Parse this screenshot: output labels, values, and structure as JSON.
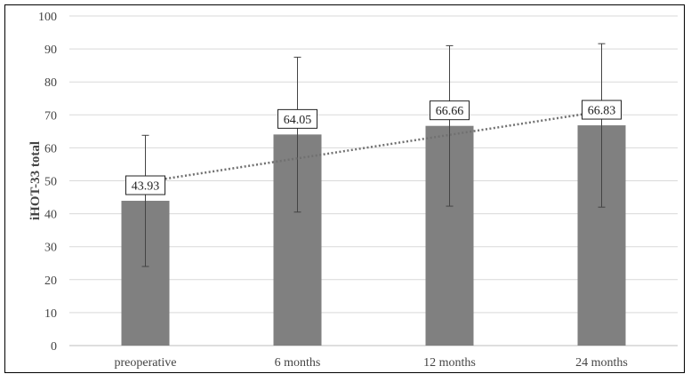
{
  "chart_data": {
    "type": "bar",
    "categories": [
      "preoperative",
      "6 months",
      "12 months",
      "24 months"
    ],
    "values": [
      43.93,
      64.05,
      66.66,
      66.83
    ],
    "error_bars": {
      "lower": [
        24,
        40.5,
        42.3,
        42
      ],
      "upper": [
        63.8,
        87.5,
        91,
        91.6
      ]
    },
    "data_labels": [
      "43.93",
      "64.05",
      "66.66",
      "66.83"
    ],
    "trendline": {
      "type": "linear",
      "style": "dotted"
    },
    "ylabel": "iHOT-33 total",
    "xlabel": "",
    "title": "",
    "ylim": [
      0,
      100
    ],
    "yticks": [
      0,
      10,
      20,
      30,
      40,
      50,
      60,
      70,
      80,
      90,
      100
    ],
    "grid": true,
    "bar_color": "#808080",
    "trend_color": "#707070"
  }
}
